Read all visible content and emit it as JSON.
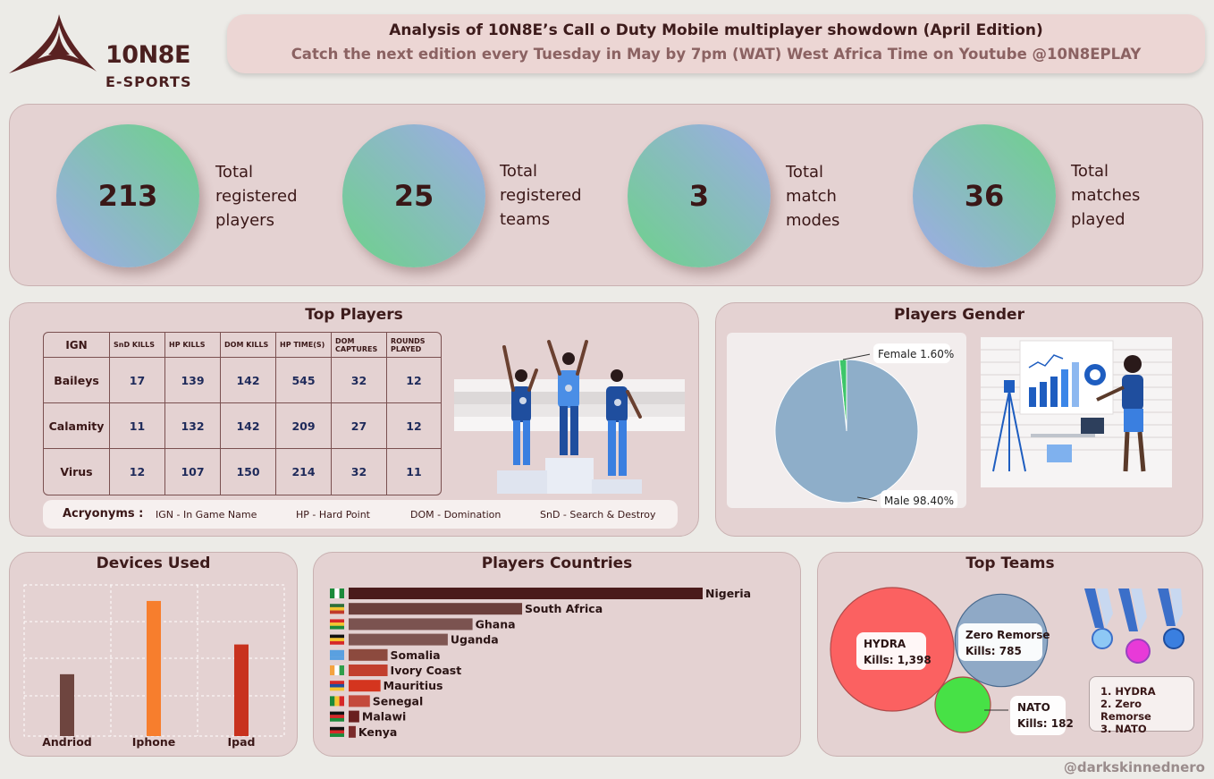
{
  "brand": {
    "name": "10N8E",
    "sub": "E-SPORTS"
  },
  "header": {
    "title": "Analysis of  10N8E’s Call o Duty Mobile multiplayer showdown (April Edition)",
    "subtitle": "Catch the next  edition every Tuesday in May by 7pm  (WAT) West Africa Time on Youtube @10N8EPLAY"
  },
  "kpis": [
    {
      "value": "213",
      "label_lines": [
        "Total",
        "registered",
        "players"
      ]
    },
    {
      "value": "25",
      "label_lines": [
        "Total",
        "registered",
        "teams"
      ]
    },
    {
      "value": "3",
      "label_lines": [
        "Total",
        "match",
        "modes"
      ]
    },
    {
      "value": "36",
      "label_lines": [
        "Total",
        "matches",
        "played"
      ]
    }
  ],
  "top_players": {
    "title": "Top Players",
    "columns": [
      "IGN",
      "SnD KILLS",
      "HP KILLS",
      "DOM KILLS",
      "HP TIME(S)",
      "DOM CAPTURES",
      "ROUNDS PLAYED"
    ],
    "rows": [
      [
        "Baileys",
        "17",
        "139",
        "142",
        "545",
        "32",
        "12"
      ],
      [
        "Calamity",
        "11",
        "132",
        "142",
        "209",
        "27",
        "12"
      ],
      [
        "Virus",
        "12",
        "107",
        "150",
        "214",
        "32",
        "11"
      ]
    ],
    "acronyms_label": "Acryonyms :",
    "acronyms": [
      "IGN - In Game Name",
      "HP - Hard Point",
      "DOM - Domination",
      "SnD - Search & Destroy"
    ]
  },
  "chart_data": [
    {
      "type": "pie",
      "title": "Players Gender",
      "categories": [
        "Female",
        "Male"
      ],
      "values": [
        1.6,
        98.4
      ],
      "labels": [
        "Female 1.60%",
        "Male 98.40%"
      ],
      "colors": [
        "#3ec66a",
        "#8eaec9"
      ]
    },
    {
      "type": "bar",
      "title": "Devices Used",
      "categories": [
        "Andriod",
        "Iphone",
        "Ipad"
      ],
      "values": [
        27,
        59,
        40
      ],
      "colors": [
        "#6e453f",
        "#f77e2d",
        "#c8321e"
      ],
      "grid": true
    },
    {
      "type": "bar",
      "orientation": "horizontal",
      "title": "Players Countries",
      "categories": [
        "Nigeria",
        "South Africa",
        "Ghana",
        "Uganda",
        "Somalia",
        "Ivory Coast",
        "Mauritius",
        "Senegal",
        "Malawi",
        "Kenya"
      ],
      "values": [
        100,
        49,
        35,
        28,
        11,
        11,
        9,
        6,
        3,
        2
      ],
      "colors": [
        "#4a1b1b",
        "#6b3f3b",
        "#7b5350",
        "#7f5652",
        "#8c4a3e",
        "#c2402e",
        "#d4351f",
        "#c44a3c",
        "#6a1f1f",
        "#7a2a2a"
      ]
    },
    {
      "type": "bubble",
      "title": "Top Teams",
      "categories": [
        "HYDRA",
        "Zero Remorse",
        "NATO"
      ],
      "values": [
        1398,
        785,
        182
      ],
      "labels": [
        "Kills: 1,398",
        "Kills: 785",
        "Kills: 182"
      ],
      "colors": [
        "#fb6161",
        "#8fa9c6",
        "#47e146"
      ]
    }
  ],
  "top_teams_ranking": [
    "1. HYDRA",
    "2. Zero Remorse",
    "3. NATO"
  ],
  "flags": [
    "flag-nigeria-icon",
    "flag-south-africa-icon",
    "flag-ghana-icon",
    "flag-uganda-icon",
    "flag-somalia-icon",
    "flag-ivory-coast-icon",
    "flag-mauritius-icon",
    "flag-senegal-icon",
    "flag-malawi-icon",
    "flag-kenya-icon"
  ],
  "watermark": "@darkskinnednero"
}
